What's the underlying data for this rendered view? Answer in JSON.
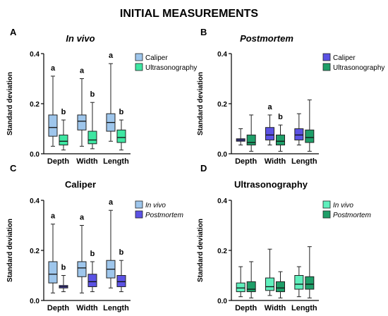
{
  "figure_title": "INITIAL MEASUREMENTS",
  "colors": {
    "caliper": "#9ec6ec",
    "ultrasonography": "#3ee6a2",
    "postmortem_caliper": "#5b52e4",
    "postmortem_ultrasonography": "#1e9e68",
    "invivo_ultrasonography": "#5ff0bd"
  },
  "chart_data": [
    {
      "panel": "A",
      "type": "box",
      "title": "In vivo",
      "title_italic": true,
      "ylabel": "Standard deviation",
      "ylim": [
        0,
        0.4
      ],
      "yticks": [
        "0.0",
        "0.2",
        "0.4"
      ],
      "categories": [
        "Depth",
        "Width",
        "Length"
      ],
      "legend_position": "right",
      "series": [
        {
          "name": "Caliper",
          "color_key": "caliper",
          "legend_italic": false,
          "boxes": [
            {
              "min": 0.03,
              "q1": 0.07,
              "median": 0.105,
              "q3": 0.155,
              "max": 0.31
            },
            {
              "min": 0.03,
              "q1": 0.095,
              "median": 0.13,
              "q3": 0.155,
              "max": 0.3
            },
            {
              "min": 0.05,
              "q1": 0.09,
              "median": 0.125,
              "q3": 0.16,
              "max": 0.36
            }
          ],
          "labels": [
            "a",
            "a",
            "a"
          ]
        },
        {
          "name": "Ultrasonography",
          "color_key": "ultrasonography",
          "legend_italic": false,
          "boxes": [
            {
              "min": 0.015,
              "q1": 0.035,
              "median": 0.05,
              "q3": 0.075,
              "max": 0.135
            },
            {
              "min": 0.02,
              "q1": 0.04,
              "median": 0.055,
              "q3": 0.09,
              "max": 0.205
            },
            {
              "min": 0.015,
              "q1": 0.045,
              "median": 0.065,
              "q3": 0.095,
              "max": 0.135
            }
          ],
          "labels": [
            "b",
            "b",
            "b"
          ]
        }
      ]
    },
    {
      "panel": "B",
      "type": "box",
      "title": "Postmortem",
      "title_italic": true,
      "ylabel": "Standard deviation",
      "ylim": [
        0,
        0.4
      ],
      "yticks": [
        "0.0",
        "0.2",
        "0.4"
      ],
      "categories": [
        "Depth",
        "Width",
        "Length"
      ],
      "legend_position": "right",
      "series": [
        {
          "name": "Caliper",
          "color_key": "postmortem_caliper",
          "legend_italic": false,
          "boxes": [
            {
              "min": 0.035,
              "q1": 0.05,
              "median": 0.055,
              "q3": 0.06,
              "max": 0.1
            },
            {
              "min": 0.035,
              "q1": 0.055,
              "median": 0.075,
              "q3": 0.105,
              "max": 0.155
            },
            {
              "min": 0.035,
              "q1": 0.055,
              "median": 0.075,
              "q3": 0.1,
              "max": 0.16
            }
          ],
          "labels": [
            "",
            "a",
            ""
          ]
        },
        {
          "name": "Ultrasonography",
          "color_key": "postmortem_ultrasonography",
          "legend_italic": false,
          "boxes": [
            {
              "min": 0.01,
              "q1": 0.035,
              "median": 0.045,
              "q3": 0.075,
              "max": 0.155
            },
            {
              "min": 0.01,
              "q1": 0.035,
              "median": 0.05,
              "q3": 0.075,
              "max": 0.115
            },
            {
              "min": 0.01,
              "q1": 0.045,
              "median": 0.065,
              "q3": 0.095,
              "max": 0.215
            }
          ],
          "labels": [
            "",
            "b",
            ""
          ]
        }
      ]
    },
    {
      "panel": "C",
      "type": "box",
      "title": "Caliper",
      "title_italic": false,
      "ylabel": "Standard deviation",
      "ylim": [
        0,
        0.4
      ],
      "yticks": [
        "0.0",
        "0.2",
        "0.4"
      ],
      "categories": [
        "Depth",
        "Width",
        "Length"
      ],
      "legend_position": "right",
      "series": [
        {
          "name": "In vivo",
          "color_key": "caliper",
          "legend_italic": true,
          "boxes": [
            {
              "min": 0.03,
              "q1": 0.07,
              "median": 0.105,
              "q3": 0.155,
              "max": 0.305
            },
            {
              "min": 0.03,
              "q1": 0.095,
              "median": 0.13,
              "q3": 0.155,
              "max": 0.3
            },
            {
              "min": 0.05,
              "q1": 0.09,
              "median": 0.125,
              "q3": 0.16,
              "max": 0.36
            }
          ],
          "labels": [
            "a",
            "a",
            "a"
          ]
        },
        {
          "name": "Postmortem",
          "color_key": "postmortem_caliper",
          "legend_italic": true,
          "boxes": [
            {
              "min": 0.035,
              "q1": 0.05,
              "median": 0.055,
              "q3": 0.06,
              "max": 0.1
            },
            {
              "min": 0.035,
              "q1": 0.055,
              "median": 0.075,
              "q3": 0.105,
              "max": 0.155
            },
            {
              "min": 0.035,
              "q1": 0.055,
              "median": 0.075,
              "q3": 0.1,
              "max": 0.16
            }
          ],
          "labels": [
            "b",
            "b",
            "b"
          ]
        }
      ]
    },
    {
      "panel": "D",
      "type": "box",
      "title": "Ultrasonography",
      "title_italic": false,
      "ylabel": "Standard deviation",
      "ylim": [
        0,
        0.4
      ],
      "yticks": [
        "0.0",
        "0.2",
        "0.4"
      ],
      "categories": [
        "Depth",
        "Width",
        "Length"
      ],
      "legend_position": "right",
      "series": [
        {
          "name": "In vivo",
          "color_key": "invivo_ultrasonography",
          "legend_italic": true,
          "boxes": [
            {
              "min": 0.015,
              "q1": 0.035,
              "median": 0.05,
              "q3": 0.07,
              "max": 0.135
            },
            {
              "min": 0.02,
              "q1": 0.04,
              "median": 0.055,
              "q3": 0.09,
              "max": 0.205
            },
            {
              "min": 0.015,
              "q1": 0.045,
              "median": 0.065,
              "q3": 0.1,
              "max": 0.135
            }
          ],
          "labels": [
            "",
            "",
            ""
          ]
        },
        {
          "name": "Postmortem",
          "color_key": "postmortem_ultrasonography",
          "legend_italic": true,
          "boxes": [
            {
              "min": 0.01,
              "q1": 0.035,
              "median": 0.045,
              "q3": 0.075,
              "max": 0.155
            },
            {
              "min": 0.01,
              "q1": 0.035,
              "median": 0.05,
              "q3": 0.075,
              "max": 0.115
            },
            {
              "min": 0.01,
              "q1": 0.045,
              "median": 0.065,
              "q3": 0.095,
              "max": 0.215
            }
          ],
          "labels": [
            "",
            "",
            ""
          ]
        }
      ]
    }
  ]
}
